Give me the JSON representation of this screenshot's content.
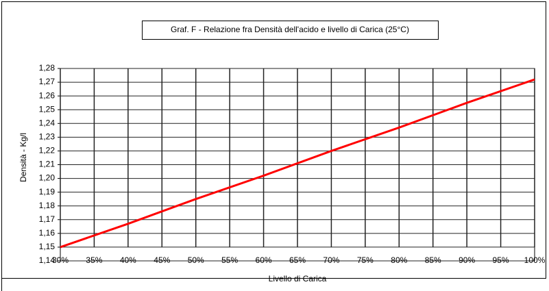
{
  "chart_data": {
    "type": "line",
    "title": "Graf. F - Relazione fra Densità dell'acido e livello di Carica (25°C)",
    "x_label": "Livello di Carica",
    "y_label": "Densità - Kg/l",
    "x": [
      30,
      40,
      50,
      60,
      70,
      80,
      90,
      100
    ],
    "series": [
      {
        "name": "Densità",
        "color": "#ff0000",
        "values": [
          1.15,
          1.167,
          1.185,
          1.202,
          1.22,
          1.237,
          1.255,
          1.272
        ]
      }
    ],
    "xlim": [
      30,
      100
    ],
    "xticks": [
      {
        "value": 30,
        "label": "30%"
      },
      {
        "value": 35,
        "label": "35%"
      },
      {
        "value": 40,
        "label": "40%"
      },
      {
        "value": 45,
        "label": "45%"
      },
      {
        "value": 50,
        "label": "50%"
      },
      {
        "value": 55,
        "label": "55%"
      },
      {
        "value": 60,
        "label": "60%"
      },
      {
        "value": 65,
        "label": "65%"
      },
      {
        "value": 70,
        "label": "70%"
      },
      {
        "value": 75,
        "label": "75%"
      },
      {
        "value": 80,
        "label": "80%"
      },
      {
        "value": 85,
        "label": "85%"
      },
      {
        "value": 90,
        "label": "90%"
      },
      {
        "value": 95,
        "label": "95%"
      },
      {
        "value": 100,
        "label": "100%"
      }
    ],
    "ylim": [
      1.14,
      1.28
    ],
    "yticks": [
      {
        "value": 1.14,
        "label": "1,14"
      },
      {
        "value": 1.15,
        "label": "1,15"
      },
      {
        "value": 1.16,
        "label": "1,16"
      },
      {
        "value": 1.17,
        "label": "1,17"
      },
      {
        "value": 1.18,
        "label": "1,18"
      },
      {
        "value": 1.19,
        "label": "1,19"
      },
      {
        "value": 1.2,
        "label": "1,20"
      },
      {
        "value": 1.21,
        "label": "1,21"
      },
      {
        "value": 1.22,
        "label": "1,22"
      },
      {
        "value": 1.23,
        "label": "1,23"
      },
      {
        "value": 1.24,
        "label": "1,24"
      },
      {
        "value": 1.25,
        "label": "1,25"
      },
      {
        "value": 1.26,
        "label": "1,26"
      },
      {
        "value": 1.27,
        "label": "1,27"
      },
      {
        "value": 1.28,
        "label": "1,28"
      }
    ],
    "grid": true
  }
}
